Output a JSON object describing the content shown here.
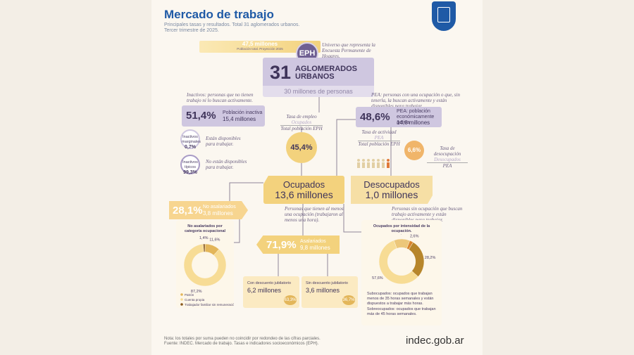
{
  "header": {
    "title": "Mercado de trabajo",
    "subtitle": [
      "Principales tasas y resultados. Total 31 aglomerados urbanos.",
      "Tercer trimestre de 2025."
    ]
  },
  "population": {
    "value": "47,5 millones",
    "label": "Población total. Proyección 2025"
  },
  "eph": {
    "badge": "EPH",
    "note": "Universo que representa la Encuesta Permanente de Hogares."
  },
  "aglomerados": {
    "number": "31",
    "label": [
      "AGLOMERADOS",
      "URBANOS"
    ],
    "people": "30 millones de personas"
  },
  "inactive": {
    "definition": "Inactivos: personas que no tienen trabajo ni lo buscan activamente.",
    "pct": "51,4%",
    "label": "Población inactiva",
    "amount": "15,4 millones",
    "breakdown": [
      {
        "name": "Inactivos marginales",
        "pct": "0,7%",
        "note": "Están disponibles para trabajar."
      },
      {
        "name": "Inactivos típicos",
        "pct": "99,3%",
        "note": "No están disponibles para trabajar."
      }
    ]
  },
  "employment_rate": {
    "title": "Tasa de empleo",
    "numerator": "Ocupados",
    "denominator": "Total población EPH",
    "value": "45,4%"
  },
  "pea": {
    "definition": "PEA: personas con una ocupación o que, sin tenerla, la buscan activamente y están disponibles para trabajar.",
    "pct": "48,6%",
    "label": "PEA: población económicamente activa",
    "amount": "14,6 millones"
  },
  "activity_rate": {
    "title": "Tasa de actividad",
    "numerator": "PEA",
    "denominator": "Total población EPH"
  },
  "unemployment_rate": {
    "title": "Tasa de desocupación",
    "numerator": "Desocupados",
    "denominator": "PEA",
    "value": "6,6%"
  },
  "ocupados": {
    "label": "Ocupados",
    "amount": "13,6 millones",
    "note": "Personas que tienen al menos una ocupación (trabajaron al menos una hora)."
  },
  "desocupados": {
    "label": "Desocupados",
    "amount": "1,0 millones",
    "note": "Personas sin ocupación que buscan trabajo activamente y están disponibles para trabajar."
  },
  "no_asalariados": {
    "pct": "28,1%",
    "label": "No asalariados",
    "amount": "3,8 millones"
  },
  "asalariados": {
    "pct": "71,9%",
    "label": "Asalariados",
    "amount": "9,8 millones",
    "cards": [
      {
        "label": "Con descuento jubilatorio",
        "amount": "6,2 millones",
        "pct": "63,3%"
      },
      {
        "label": "Sin descuento jubilatorio",
        "amount": "3,6 millones",
        "pct": "36,7%"
      }
    ]
  },
  "pie_no_asalariados": {
    "type": "pie",
    "title": "No asalariados por categoría ocupacional",
    "categories": [
      "Patrón",
      "Cuenta propia",
      "Trabajador familiar sin remuneración"
    ],
    "values": [
      11.6,
      87.2,
      1.4
    ],
    "value_labels": [
      "11,6%",
      "87,2%",
      "1,4%"
    ],
    "colors": [
      "#e3b65a",
      "#f7dc95",
      "#8a5a1e"
    ]
  },
  "pie_intensidad": {
    "type": "pie",
    "title": "Ocupados por intensidad de la ocupación.",
    "categories": [
      "Subocupados",
      "No trabajaron en la semana",
      "Sobreocupados",
      "Ocupados plenos"
    ],
    "values": [
      11.6,
      2.6,
      28.2,
      57.6
    ],
    "value_labels": [
      "11,6%",
      "2,6%",
      "28,2%",
      "57,6%"
    ],
    "colors": [
      "#ecc77a",
      "#d9852e",
      "#b7862b",
      "#f7dc95"
    ],
    "notes": [
      "Subocupados: ocupados que trabajan menos de 35 horas semanales y están dispuestos a trabajar más horas.",
      "Sobreocupados: ocupados que trabajan más de 45 horas semanales."
    ]
  },
  "footer": {
    "note": "Nota: los totales por suma pueden no coincidir por redondeo de las cifras parciales.",
    "source": "Fuente: INDEC. Mercado de trabajo. Tasas e indicadores socioeconómicos (EPH).",
    "logo": "indec.gob.ar"
  }
}
